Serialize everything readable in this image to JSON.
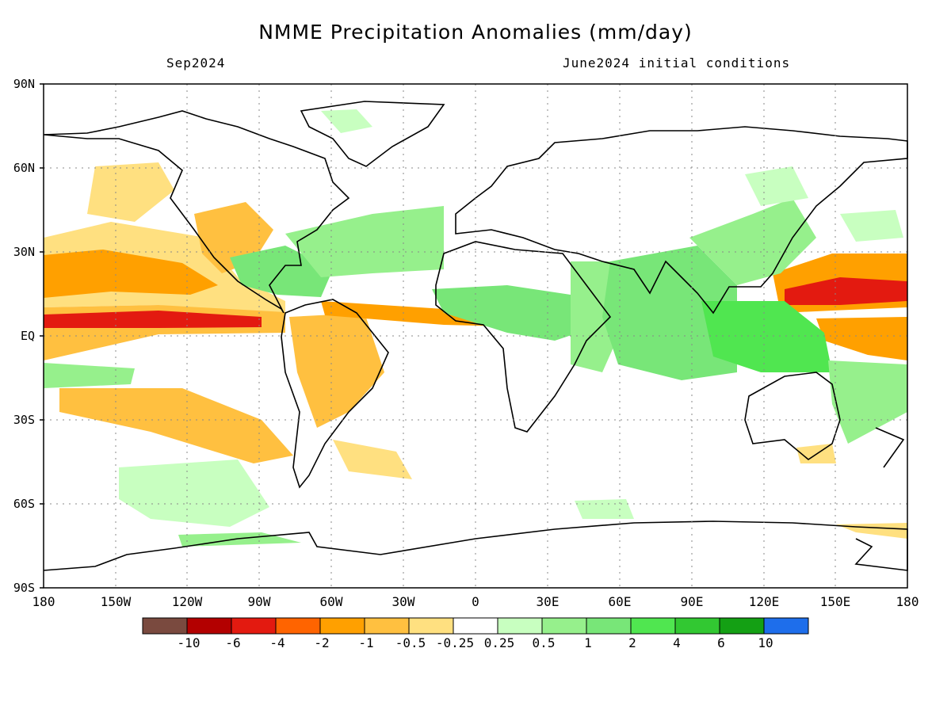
{
  "title": "NMME Precipitation Anomalies (mm/day)",
  "valid_month": "Sep2024",
  "initial_conditions": "June2024 initial conditions",
  "lat_labels": [
    "90N",
    "60N",
    "30N",
    "EQ",
    "30S",
    "60S",
    "90S"
  ],
  "lon_labels": [
    "180",
    "150W",
    "120W",
    "90W",
    "60W",
    "30W",
    "0",
    "30E",
    "60E",
    "90E",
    "120E",
    "150E",
    "180"
  ],
  "colorbar": {
    "colors": [
      "#7a4a3f",
      "#b30000",
      "#e31a10",
      "#ff6400",
      "#ffa000",
      "#ffc040",
      "#ffe080",
      "#ffffff",
      "#c8ffc0",
      "#96f08c",
      "#78e678",
      "#50e650",
      "#32c832",
      "#14a014",
      "#1e6eeb"
    ],
    "labels": [
      "-10",
      "-6",
      "-4",
      "-2",
      "-1",
      "-0.5",
      "-0.25",
      "0.25",
      "0.5",
      "1",
      "2",
      "4",
      "6",
      "10"
    ]
  },
  "colors": {
    "dry_light": "#ffe080",
    "dry_mid": "#ffc040",
    "dry_orange": "#ffa000",
    "dry_strong": "#ff6400",
    "dry_red": "#e31a10",
    "wet_light": "#c8ffc0",
    "wet_mid": "#96f08c",
    "wet_green": "#78e678",
    "wet_strong": "#50e650",
    "coast": "#000000",
    "grid": "#888888"
  }
}
